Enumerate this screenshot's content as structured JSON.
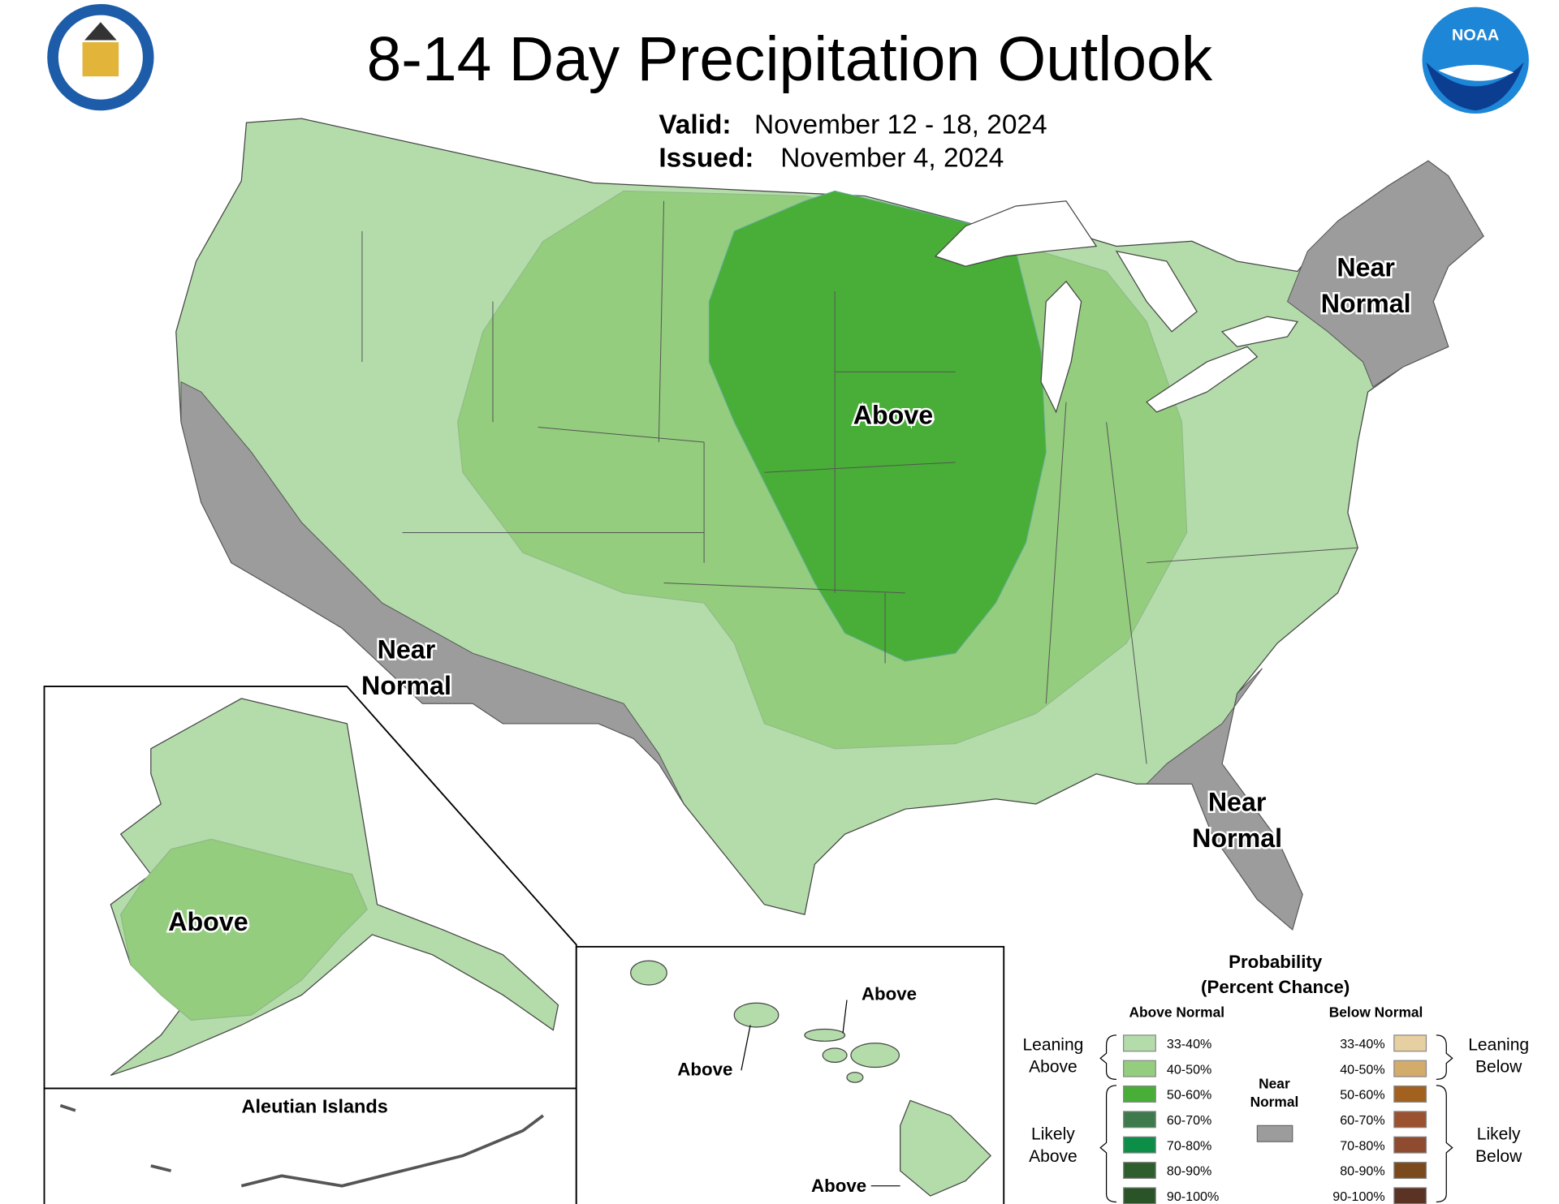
{
  "header": {
    "title": "8-14 Day Precipitation Outlook",
    "valid_label": "Valid:",
    "valid": "November 12 - 18, 2024",
    "issued_label": "Issued:",
    "issued": "November 4, 2024"
  },
  "map_labels": {
    "conus_above": "Above",
    "west_near": [
      "Near",
      "Normal"
    ],
    "northeast_near": [
      "Near",
      "Normal"
    ],
    "southeast_near": [
      "Near",
      "Normal"
    ],
    "alaska": "Above",
    "aleutian_title": "Aleutian Islands",
    "hawaii": [
      "Above",
      "Above",
      "Above"
    ]
  },
  "legend": {
    "title": "Probability",
    "subtitle": "(Percent Chance)",
    "above_header": "Above Normal",
    "below_header": "Below Normal",
    "above": [
      {
        "label": "33-40%",
        "color": "#b3dcaa"
      },
      {
        "label": "40-50%",
        "color": "#94cd7e"
      },
      {
        "label": "50-60%",
        "color": "#48ae38"
      },
      {
        "label": "60-70%",
        "color": "#3e7a4c"
      },
      {
        "label": "70-80%",
        "color": "#0c8e48"
      },
      {
        "label": "80-90%",
        "color": "#2e5e2e"
      },
      {
        "label": "90-100%",
        "color": "#2a5428"
      }
    ],
    "below": [
      {
        "label": "33-40%",
        "color": "#e6cfa0"
      },
      {
        "label": "40-50%",
        "color": "#d3ab6a"
      },
      {
        "label": "50-60%",
        "color": "#a2611e"
      },
      {
        "label": "60-70%",
        "color": "#9b5230"
      },
      {
        "label": "70-80%",
        "color": "#8e4b30"
      },
      {
        "label": "80-90%",
        "color": "#7b4a1c"
      },
      {
        "label": "90-100%",
        "color": "#5a3325"
      }
    ],
    "near_normal": {
      "lines": [
        "Near",
        "Normal"
      ],
      "color": "#9c9c9c"
    },
    "leaning_above": [
      "Leaning",
      "Above"
    ],
    "likely_above": [
      "Likely",
      "Above"
    ],
    "leaning_below": [
      "Leaning",
      "Below"
    ],
    "likely_below": [
      "Likely",
      "Below"
    ]
  }
}
